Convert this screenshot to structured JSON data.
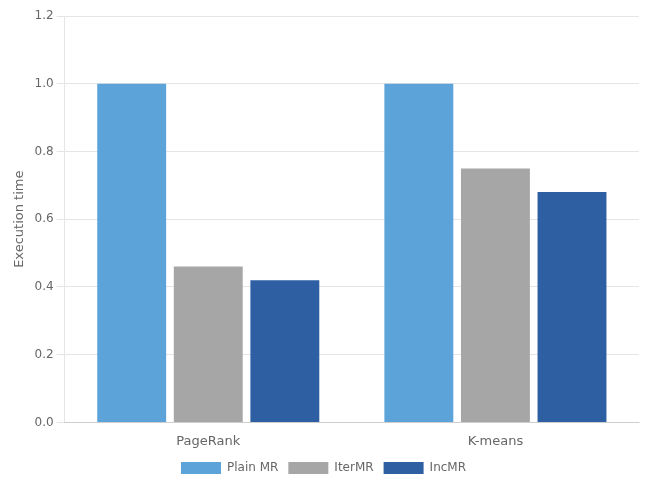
{
  "chart_data": {
    "type": "bar",
    "categories": [
      "PageRank",
      "K-means"
    ],
    "series": [
      {
        "name": "Plain MR",
        "values": [
          1.0,
          1.0
        ],
        "color": "#5BA3D9"
      },
      {
        "name": "IterMR",
        "values": [
          0.46,
          0.75
        ],
        "color": "#A6A6A6"
      },
      {
        "name": "IncMR",
        "values": [
          0.42,
          0.68
        ],
        "color": "#2E5FA3"
      }
    ],
    "y_label": "Execution time",
    "ylim": [
      0,
      1.2
    ],
    "yticks": [
      {
        "value": 0,
        "label": "0.0"
      },
      0.2,
      0.4,
      0.6,
      0.8,
      {
        "value": 1.0,
        "label": "1.0"
      },
      1.2
    ],
    "grid": true,
    "legend": "bottom"
  }
}
